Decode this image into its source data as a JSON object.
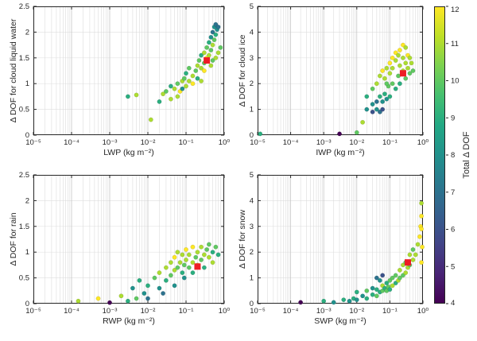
{
  "figure": {
    "background": "#ffffff"
  },
  "colors": {
    "axis": "#262626",
    "grid_major": "#c6c6c6",
    "grid_minor": "#dcdcdc",
    "grid_horizontal": "#e3e3e3",
    "mean_marker": "#ee1c25",
    "tick_text": "#262626"
  },
  "colorbar": {
    "label": "Total Δ DOF",
    "min": 4,
    "max": 12,
    "ticks": [
      4,
      5,
      6,
      7,
      8,
      9,
      10,
      11,
      12
    ],
    "colormap": [
      [
        0.0,
        "#440154"
      ],
      [
        0.1,
        "#482475"
      ],
      [
        0.2,
        "#414487"
      ],
      [
        0.3,
        "#355f8d"
      ],
      [
        0.4,
        "#2a788e"
      ],
      [
        0.5,
        "#21918c"
      ],
      [
        0.6,
        "#22a884"
      ],
      [
        0.7,
        "#44bf70"
      ],
      [
        0.8,
        "#7ad151"
      ],
      [
        0.9,
        "#bddf26"
      ],
      [
        1.0,
        "#fde725"
      ]
    ]
  },
  "chart_data": [
    {
      "type": "scatter",
      "xlabel": "LWP (kg m⁻²)",
      "ylabel": "Δ DOF for cloud liquid water",
      "xscale": "log",
      "xlim": [
        1e-05,
        1
      ],
      "ylim": [
        0,
        2.5
      ],
      "yticks": [
        0,
        0.5,
        1,
        1.5,
        2,
        2.5
      ],
      "xtick_values": [
        1e-05,
        0.0001,
        0.001,
        0.01,
        0.1,
        1
      ],
      "xtick_labels": [
        "10⁻⁵",
        "10⁻⁴",
        "10⁻³",
        "10⁻²",
        "10⁻¹",
        "10⁰"
      ],
      "color_key": "Total Δ DOF",
      "points": [
        [
          0.003,
          0.75,
          9
        ],
        [
          0.005,
          0.78,
          11
        ],
        [
          0.012,
          0.3,
          11
        ],
        [
          0.02,
          0.65,
          9
        ],
        [
          0.025,
          0.8,
          11
        ],
        [
          0.03,
          0.85,
          10
        ],
        [
          0.04,
          0.7,
          11
        ],
        [
          0.04,
          0.95,
          9
        ],
        [
          0.05,
          0.9,
          11
        ],
        [
          0.06,
          0.75,
          11
        ],
        [
          0.06,
          1.0,
          10
        ],
        [
          0.07,
          0.85,
          12
        ],
        [
          0.08,
          1.05,
          11
        ],
        [
          0.08,
          0.9,
          8
        ],
        [
          0.09,
          1.1,
          10
        ],
        [
          0.1,
          0.95,
          11
        ],
        [
          0.1,
          1.2,
          9
        ],
        [
          0.12,
          1.05,
          11
        ],
        [
          0.12,
          1.3,
          10
        ],
        [
          0.15,
          1.15,
          11
        ],
        [
          0.15,
          1.0,
          12
        ],
        [
          0.18,
          1.25,
          10
        ],
        [
          0.2,
          1.35,
          11
        ],
        [
          0.2,
          1.1,
          9
        ],
        [
          0.22,
          1.45,
          10
        ],
        [
          0.25,
          1.3,
          11
        ],
        [
          0.25,
          1.55,
          9
        ],
        [
          0.3,
          1.4,
          10
        ],
        [
          0.3,
          1.6,
          11
        ],
        [
          0.35,
          1.5,
          12
        ],
        [
          0.35,
          1.7,
          10
        ],
        [
          0.4,
          1.55,
          11
        ],
        [
          0.4,
          1.8,
          9
        ],
        [
          0.45,
          1.65,
          10
        ],
        [
          0.45,
          1.9,
          8
        ],
        [
          0.5,
          1.75,
          11
        ],
        [
          0.5,
          2.0,
          7
        ],
        [
          0.55,
          1.85,
          10
        ],
        [
          0.55,
          2.1,
          8
        ],
        [
          0.6,
          1.95,
          9
        ],
        [
          0.6,
          2.15,
          7
        ],
        [
          0.65,
          2.05,
          8
        ],
        [
          0.7,
          1.6,
          11
        ],
        [
          0.7,
          2.1,
          7
        ],
        [
          0.8,
          1.7,
          10
        ],
        [
          0.45,
          1.35,
          11
        ],
        [
          0.3,
          1.25,
          12
        ],
        [
          0.25,
          1.05,
          11
        ],
        [
          0.5,
          1.45,
          10
        ],
        [
          0.6,
          1.5,
          11
        ]
      ],
      "mean_marker": [
        0.35,
        1.45
      ]
    },
    {
      "type": "scatter",
      "xlabel": "IWP (kg m⁻²)",
      "ylabel": "Δ DOF for cloud ice",
      "xscale": "log",
      "xlim": [
        1e-05,
        1
      ],
      "ylim": [
        0,
        5
      ],
      "yticks": [
        0,
        1,
        2,
        3,
        4,
        5
      ],
      "xtick_values": [
        1e-05,
        0.0001,
        0.001,
        0.01,
        0.1,
        1
      ],
      "xtick_labels": [
        "10⁻⁵",
        "10⁻⁴",
        "10⁻³",
        "10⁻²",
        "10⁻¹",
        "10⁰"
      ],
      "color_key": "Total Δ DOF",
      "points": [
        [
          1.2e-05,
          0.05,
          9
        ],
        [
          0.003,
          0.05,
          4
        ],
        [
          0.01,
          0.1,
          10
        ],
        [
          0.015,
          0.5,
          11
        ],
        [
          0.02,
          1.0,
          8
        ],
        [
          0.02,
          1.5,
          9
        ],
        [
          0.03,
          1.2,
          8
        ],
        [
          0.03,
          1.8,
          10
        ],
        [
          0.04,
          1.0,
          8
        ],
        [
          0.04,
          2.0,
          11
        ],
        [
          0.05,
          1.5,
          9
        ],
        [
          0.05,
          2.3,
          11
        ],
        [
          0.06,
          1.3,
          8
        ],
        [
          0.06,
          2.5,
          12
        ],
        [
          0.07,
          1.6,
          9
        ],
        [
          0.07,
          2.2,
          11
        ],
        [
          0.08,
          1.4,
          8
        ],
        [
          0.08,
          2.6,
          11
        ],
        [
          0.09,
          1.9,
          10
        ],
        [
          0.1,
          1.5,
          9
        ],
        [
          0.1,
          2.4,
          11
        ],
        [
          0.1,
          2.8,
          12
        ],
        [
          0.12,
          2.0,
          10
        ],
        [
          0.12,
          2.6,
          11
        ],
        [
          0.15,
          1.8,
          9
        ],
        [
          0.15,
          2.9,
          11
        ],
        [
          0.15,
          3.2,
          12
        ],
        [
          0.18,
          2.3,
          10
        ],
        [
          0.2,
          2.0,
          9
        ],
        [
          0.2,
          2.7,
          11
        ],
        [
          0.2,
          3.3,
          12
        ],
        [
          0.25,
          2.5,
          11
        ],
        [
          0.25,
          3.0,
          11
        ],
        [
          0.25,
          3.5,
          12
        ],
        [
          0.3,
          2.2,
          10
        ],
        [
          0.3,
          2.8,
          11
        ],
        [
          0.3,
          3.4,
          11
        ],
        [
          0.35,
          2.6,
          11
        ],
        [
          0.35,
          3.1,
          12
        ],
        [
          0.4,
          2.4,
          10
        ],
        [
          0.4,
          3.0,
          11
        ],
        [
          0.45,
          2.8,
          11
        ],
        [
          0.5,
          2.5,
          10
        ],
        [
          0.05,
          0.9,
          7
        ],
        [
          0.06,
          1.0,
          6
        ],
        [
          0.04,
          1.3,
          7
        ],
        [
          0.03,
          0.9,
          6
        ],
        [
          0.08,
          2.0,
          10
        ],
        [
          0.12,
          3.0,
          12
        ],
        [
          0.18,
          3.1,
          11
        ]
      ],
      "mean_marker": [
        0.25,
        2.4
      ]
    },
    {
      "type": "scatter",
      "xlabel": "RWP (kg m⁻²)",
      "ylabel": "Δ DOF for rain",
      "xscale": "log",
      "xlim": [
        1e-05,
        1
      ],
      "ylim": [
        0,
        2.5
      ],
      "yticks": [
        0,
        0.5,
        1,
        1.5,
        2,
        2.5
      ],
      "xtick_values": [
        1e-05,
        0.0001,
        0.001,
        0.01,
        0.1,
        1
      ],
      "xtick_labels": [
        "10⁻⁵",
        "10⁻⁴",
        "10⁻³",
        "10⁻²",
        "10⁻¹",
        "10⁰"
      ],
      "color_key": "Total Δ DOF",
      "points": [
        [
          0.00015,
          0.05,
          11
        ],
        [
          0.0005,
          0.1,
          12
        ],
        [
          0.001,
          0.02,
          4
        ],
        [
          0.002,
          0.15,
          11
        ],
        [
          0.003,
          0.05,
          9
        ],
        [
          0.004,
          0.3,
          8
        ],
        [
          0.005,
          0.1,
          10
        ],
        [
          0.006,
          0.45,
          9
        ],
        [
          0.008,
          0.2,
          8
        ],
        [
          0.01,
          0.35,
          9
        ],
        [
          0.01,
          0.1,
          7
        ],
        [
          0.015,
          0.5,
          10
        ],
        [
          0.02,
          0.3,
          8
        ],
        [
          0.02,
          0.6,
          11
        ],
        [
          0.03,
          0.45,
          9
        ],
        [
          0.03,
          0.7,
          11
        ],
        [
          0.04,
          0.55,
          10
        ],
        [
          0.04,
          0.8,
          11
        ],
        [
          0.05,
          0.65,
          11
        ],
        [
          0.05,
          0.9,
          12
        ],
        [
          0.06,
          0.7,
          10
        ],
        [
          0.06,
          1.0,
          11
        ],
        [
          0.07,
          0.8,
          11
        ],
        [
          0.08,
          0.6,
          9
        ],
        [
          0.08,
          0.95,
          11
        ],
        [
          0.09,
          0.75,
          10
        ],
        [
          0.1,
          0.85,
          11
        ],
        [
          0.1,
          1.05,
          12
        ],
        [
          0.12,
          0.7,
          10
        ],
        [
          0.12,
          0.95,
          11
        ],
        [
          0.15,
          0.8,
          11
        ],
        [
          0.15,
          1.1,
          12
        ],
        [
          0.18,
          0.9,
          10
        ],
        [
          0.2,
          0.75,
          11
        ],
        [
          0.2,
          1.0,
          11
        ],
        [
          0.25,
          0.85,
          10
        ],
        [
          0.25,
          1.1,
          11
        ],
        [
          0.3,
          0.95,
          11
        ],
        [
          0.3,
          0.7,
          9
        ],
        [
          0.35,
          1.05,
          10
        ],
        [
          0.4,
          0.9,
          11
        ],
        [
          0.4,
          1.15,
          10
        ],
        [
          0.5,
          1.0,
          9
        ],
        [
          0.5,
          0.8,
          11
        ],
        [
          0.6,
          1.1,
          10
        ],
        [
          0.7,
          0.95,
          9
        ],
        [
          0.025,
          0.2,
          7
        ],
        [
          0.05,
          0.35,
          8
        ],
        [
          0.15,
          0.6,
          9
        ],
        [
          0.09,
          0.5,
          8
        ]
      ],
      "mean_marker": [
        0.2,
        0.72
      ]
    },
    {
      "type": "scatter",
      "xlabel": "SWP (kg m⁻²)",
      "ylabel": "Δ DOF for snow",
      "xscale": "log",
      "xlim": [
        1e-05,
        1
      ],
      "ylim": [
        0,
        5
      ],
      "yticks": [
        0,
        1,
        2,
        3,
        4,
        5
      ],
      "xtick_values": [
        1e-05,
        0.0001,
        0.001,
        0.01,
        0.1,
        1
      ],
      "xtick_labels": [
        "10⁻⁵",
        "10⁻⁴",
        "10⁻³",
        "10⁻²",
        "10⁻¹",
        "10⁰"
      ],
      "color_key": "Total Δ DOF",
      "points": [
        [
          0.0002,
          0.05,
          4
        ],
        [
          0.001,
          0.1,
          9
        ],
        [
          0.002,
          0.05,
          8
        ],
        [
          0.004,
          0.15,
          9
        ],
        [
          0.006,
          0.1,
          8
        ],
        [
          0.008,
          0.2,
          9
        ],
        [
          0.01,
          0.15,
          8
        ],
        [
          0.01,
          0.45,
          9
        ],
        [
          0.015,
          0.3,
          8
        ],
        [
          0.02,
          0.2,
          9
        ],
        [
          0.02,
          0.5,
          10
        ],
        [
          0.03,
          0.35,
          9
        ],
        [
          0.03,
          0.6,
          8
        ],
        [
          0.04,
          0.3,
          10
        ],
        [
          0.04,
          0.55,
          9
        ],
        [
          0.05,
          0.45,
          9
        ],
        [
          0.05,
          0.9,
          8
        ],
        [
          0.06,
          0.5,
          10
        ],
        [
          0.06,
          0.7,
          11
        ],
        [
          0.07,
          0.6,
          9
        ],
        [
          0.08,
          0.5,
          10
        ],
        [
          0.08,
          0.8,
          9
        ],
        [
          0.09,
          0.65,
          10
        ],
        [
          0.1,
          0.55,
          9
        ],
        [
          0.1,
          0.9,
          10
        ],
        [
          0.12,
          0.7,
          11
        ],
        [
          0.12,
          1.0,
          10
        ],
        [
          0.15,
          0.8,
          9
        ],
        [
          0.15,
          1.1,
          10
        ],
        [
          0.18,
          0.9,
          11
        ],
        [
          0.2,
          1.0,
          10
        ],
        [
          0.2,
          1.3,
          11
        ],
        [
          0.25,
          1.1,
          10
        ],
        [
          0.25,
          1.5,
          11
        ],
        [
          0.3,
          1.2,
          11
        ],
        [
          0.3,
          1.6,
          10
        ],
        [
          0.35,
          1.4,
          11
        ],
        [
          0.4,
          1.5,
          10
        ],
        [
          0.4,
          1.9,
          11
        ],
        [
          0.5,
          1.7,
          11
        ],
        [
          0.5,
          2.1,
          10
        ],
        [
          0.6,
          1.9,
          11
        ],
        [
          0.7,
          2.3,
          11
        ],
        [
          0.8,
          2.6,
          12
        ],
        [
          0.85,
          3.0,
          12
        ],
        [
          0.9,
          3.4,
          12
        ],
        [
          0.9,
          3.9,
          11
        ],
        [
          0.9,
          2.9,
          12
        ],
        [
          0.95,
          2.2,
          12
        ],
        [
          0.9,
          1.6,
          12
        ],
        [
          0.04,
          1.0,
          7
        ],
        [
          0.06,
          1.1,
          6
        ]
      ],
      "mean_marker": [
        0.35,
        1.6
      ]
    }
  ]
}
